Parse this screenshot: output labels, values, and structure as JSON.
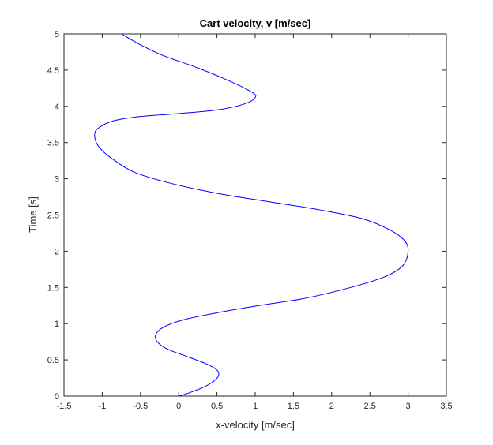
{
  "chart_data": {
    "type": "line",
    "title": "Cart velocity, v [m/sec]",
    "xlabel": "x-velocity [m/sec]",
    "ylabel": "Time [s]",
    "xlim": [
      -1.5,
      3.5
    ],
    "ylim": [
      0,
      5
    ],
    "xticks": [
      -1.5,
      -1,
      -0.5,
      0,
      0.5,
      1,
      1.5,
      2,
      2.5,
      3,
      3.5
    ],
    "yticks": [
      0,
      0.5,
      1,
      1.5,
      2,
      2.5,
      3,
      3.5,
      4,
      4.5,
      5
    ],
    "xtick_labels": [
      "-1.5",
      "-1",
      "-0.5",
      "0",
      "0.5",
      "1",
      "1.5",
      "2",
      "2.5",
      "3",
      "3.5"
    ],
    "ytick_labels": [
      "0",
      "0.5",
      "1",
      "1.5",
      "2",
      "2.5",
      "3",
      "3.5",
      "4",
      "4.5",
      "5"
    ],
    "grid": false,
    "line_color": "#0000ff",
    "series": [
      {
        "x": [
          0,
          0.15,
          0.32,
          0.45,
          0.52,
          0.5,
          0.35,
          0.1,
          -0.15,
          -0.28,
          -0.3,
          -0.2,
          0.05,
          0.5,
          1.05,
          1.65,
          2.25,
          2.7,
          2.93,
          3.0,
          2.95,
          2.75,
          2.4,
          1.85,
          1.2,
          0.5,
          -0.15,
          -0.6,
          -0.9,
          -1.05,
          -1.1,
          -1.05,
          -0.85,
          -0.5,
          0,
          0.5,
          0.85,
          1.0,
          0.95,
          0.6,
          0.2,
          -0.2,
          -0.5,
          -0.75
        ],
        "y": [
          0,
          0.05,
          0.12,
          0.2,
          0.28,
          0.36,
          0.45,
          0.55,
          0.65,
          0.75,
          0.85,
          0.95,
          1.05,
          1.15,
          1.25,
          1.35,
          1.5,
          1.65,
          1.8,
          2.0,
          2.15,
          2.3,
          2.45,
          2.57,
          2.68,
          2.8,
          2.95,
          3.1,
          3.3,
          3.45,
          3.6,
          3.7,
          3.8,
          3.86,
          3.9,
          3.95,
          4.03,
          4.12,
          4.2,
          4.38,
          4.55,
          4.7,
          4.85,
          5.0
        ]
      }
    ]
  }
}
